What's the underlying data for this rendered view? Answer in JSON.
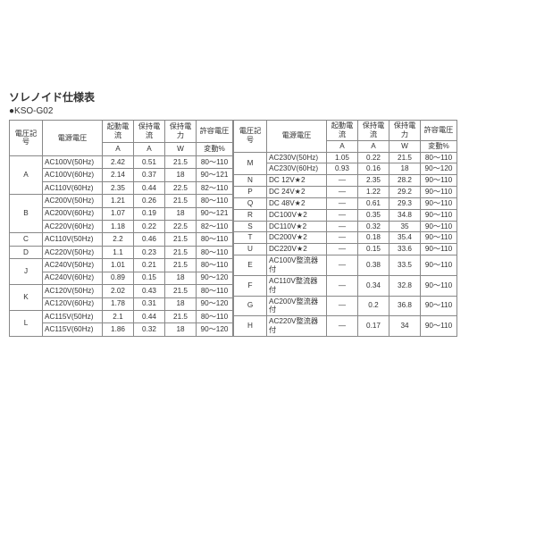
{
  "title": "ソレノイド仕様表",
  "subtitle": "●KSO-G02",
  "headers": {
    "code": "電圧記号",
    "voltage": "電源電圧",
    "startA": "起動電流",
    "holdA": "保持電流",
    "holdW": "保持電力",
    "tolPct": "許容電圧",
    "unitA": "A",
    "unitW": "W",
    "unitPct": "変動%"
  },
  "left": [
    {
      "code": "A",
      "rows": [
        {
          "v": "AC100V(50Hz)",
          "a1": "2.42",
          "a2": "0.51",
          "w": "21.5",
          "p": "80～110"
        },
        {
          "v": "AC100V(60Hz)",
          "a1": "2.14",
          "a2": "0.37",
          "w": "18",
          "p": "90～121"
        },
        {
          "v": "AC110V(60Hz)",
          "a1": "2.35",
          "a2": "0.44",
          "w": "22.5",
          "p": "82～110"
        }
      ]
    },
    {
      "code": "B",
      "rows": [
        {
          "v": "AC200V(50Hz)",
          "a1": "1.21",
          "a2": "0.26",
          "w": "21.5",
          "p": "80～110"
        },
        {
          "v": "AC200V(60Hz)",
          "a1": "1.07",
          "a2": "0.19",
          "w": "18",
          "p": "90～121"
        },
        {
          "v": "AC220V(60Hz)",
          "a1": "1.18",
          "a2": "0.22",
          "w": "22.5",
          "p": "82～110"
        }
      ]
    },
    {
      "code": "C",
      "rows": [
        {
          "v": "AC110V(50Hz)",
          "a1": "2.2",
          "a2": "0.46",
          "w": "21.5",
          "p": "80～110"
        }
      ]
    },
    {
      "code": "D",
      "rows": [
        {
          "v": "AC220V(50Hz)",
          "a1": "1.1",
          "a2": "0.23",
          "w": "21.5",
          "p": "80～110"
        }
      ]
    },
    {
      "code": "J",
      "rows": [
        {
          "v": "AC240V(50Hz)",
          "a1": "1.01",
          "a2": "0.21",
          "w": "21.5",
          "p": "80～110"
        },
        {
          "v": "AC240V(60Hz)",
          "a1": "0.89",
          "a2": "0.15",
          "w": "18",
          "p": "90～120"
        }
      ]
    },
    {
      "code": "K",
      "rows": [
        {
          "v": "AC120V(50Hz)",
          "a1": "2.02",
          "a2": "0.43",
          "w": "21.5",
          "p": "80～110"
        },
        {
          "v": "AC120V(60Hz)",
          "a1": "1.78",
          "a2": "0.31",
          "w": "18",
          "p": "90～120"
        }
      ]
    },
    {
      "code": "L",
      "rows": [
        {
          "v": "AC115V(50Hz)",
          "a1": "2.1",
          "a2": "0.44",
          "w": "21.5",
          "p": "80～110"
        },
        {
          "v": "AC115V(60Hz)",
          "a1": "1.86",
          "a2": "0.32",
          "w": "18",
          "p": "90～120"
        }
      ]
    }
  ],
  "right": [
    {
      "code": "M",
      "rows": [
        {
          "v": "AC230V(50Hz)",
          "a1": "1.05",
          "a2": "0.22",
          "w": "21.5",
          "p": "80～110"
        },
        {
          "v": "AC230V(60Hz)",
          "a1": "0.93",
          "a2": "0.16",
          "w": "18",
          "p": "90～120"
        }
      ]
    },
    {
      "code": "N",
      "rows": [
        {
          "v": "DC 12V★2",
          "a1": "—",
          "a2": "2.35",
          "w": "28.2",
          "p": "90～110"
        }
      ]
    },
    {
      "code": "P",
      "rows": [
        {
          "v": "DC 24V★2",
          "a1": "—",
          "a2": "1.22",
          "w": "29.2",
          "p": "90～110"
        }
      ]
    },
    {
      "code": "Q",
      "rows": [
        {
          "v": "DC 48V★2",
          "a1": "—",
          "a2": "0.61",
          "w": "29.3",
          "p": "90～110"
        }
      ]
    },
    {
      "code": "R",
      "rows": [
        {
          "v": "DC100V★2",
          "a1": "—",
          "a2": "0.35",
          "w": "34.8",
          "p": "90～110"
        }
      ]
    },
    {
      "code": "S",
      "rows": [
        {
          "v": "DC110V★2",
          "a1": "—",
          "a2": "0.32",
          "w": "35",
          "p": "90～110"
        }
      ]
    },
    {
      "code": "T",
      "rows": [
        {
          "v": "DC200V★2",
          "a1": "—",
          "a2": "0.18",
          "w": "35.4",
          "p": "90～110"
        }
      ]
    },
    {
      "code": "U",
      "rows": [
        {
          "v": "DC220V★2",
          "a1": "—",
          "a2": "0.15",
          "w": "33.6",
          "p": "90～110"
        }
      ]
    },
    {
      "code": "E",
      "rows": [
        {
          "v": "AC100V整流器付",
          "a1": "—",
          "a2": "0.38",
          "w": "33.5",
          "p": "90～110"
        }
      ]
    },
    {
      "code": "F",
      "rows": [
        {
          "v": "AC110V整流器付",
          "a1": "—",
          "a2": "0.34",
          "w": "32.8",
          "p": "90～110"
        }
      ]
    },
    {
      "code": "G",
      "rows": [
        {
          "v": "AC200V整流器付",
          "a1": "—",
          "a2": "0.2",
          "w": "36.8",
          "p": "90～110"
        }
      ]
    },
    {
      "code": "H",
      "rows": [
        {
          "v": "AC220V整流器付",
          "a1": "—",
          "a2": "0.17",
          "w": "34",
          "p": "90～110"
        }
      ]
    }
  ]
}
